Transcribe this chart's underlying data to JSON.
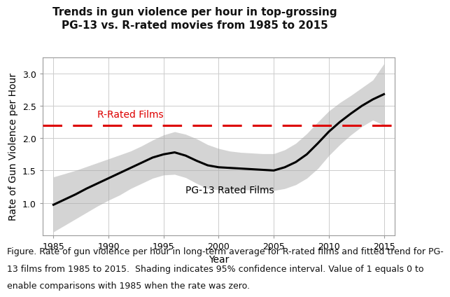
{
  "title_line1": "Trends in gun violence per hour in top-grossing",
  "title_line2": "PG-13 vs. R-rated movies from 1985 to 2015",
  "xlabel": "Year",
  "ylabel": "Rate of Gun Violence per Hour",
  "r_rated_value": 2.2,
  "r_rated_label": "R-Rated Films",
  "pg13_label": "PG-13 Rated Films",
  "xlim": [
    1984,
    2016
  ],
  "ylim": [
    0.5,
    3.25
  ],
  "yticks": [
    1.0,
    1.5,
    2.0,
    2.5,
    3.0
  ],
  "xticks": [
    1985,
    1990,
    1995,
    2000,
    2005,
    2010,
    2015
  ],
  "pg13_x": [
    1985,
    1986,
    1987,
    1988,
    1989,
    1990,
    1991,
    1992,
    1993,
    1994,
    1995,
    1996,
    1997,
    1998,
    1999,
    2000,
    2001,
    2002,
    2003,
    2004,
    2005,
    2006,
    2007,
    2008,
    2009,
    2010,
    2011,
    2012,
    2013,
    2014,
    2015
  ],
  "pg13_y": [
    0.97,
    1.05,
    1.13,
    1.22,
    1.3,
    1.38,
    1.46,
    1.54,
    1.62,
    1.7,
    1.75,
    1.78,
    1.73,
    1.65,
    1.58,
    1.55,
    1.54,
    1.53,
    1.52,
    1.51,
    1.5,
    1.55,
    1.63,
    1.75,
    1.92,
    2.1,
    2.25,
    2.38,
    2.5,
    2.6,
    2.68
  ],
  "pg13_upper": [
    1.4,
    1.45,
    1.5,
    1.56,
    1.62,
    1.68,
    1.74,
    1.8,
    1.88,
    1.97,
    2.05,
    2.1,
    2.06,
    1.99,
    1.9,
    1.84,
    1.8,
    1.78,
    1.77,
    1.76,
    1.76,
    1.82,
    1.92,
    2.07,
    2.25,
    2.42,
    2.55,
    2.66,
    2.78,
    2.9,
    3.15
  ],
  "pg13_lower": [
    0.55,
    0.65,
    0.75,
    0.85,
    0.95,
    1.04,
    1.12,
    1.22,
    1.3,
    1.38,
    1.43,
    1.44,
    1.39,
    1.3,
    1.22,
    1.2,
    1.2,
    1.2,
    1.2,
    1.2,
    1.19,
    1.22,
    1.28,
    1.38,
    1.53,
    1.73,
    1.9,
    2.05,
    2.18,
    2.28,
    2.2
  ],
  "background_color": "#ffffff",
  "plot_bg_color": "#ffffff",
  "grid_color": "#cccccc",
  "shade_color": "#aaaaaa",
  "line_color": "#000000",
  "r_line_color": "#dd0000",
  "r_label_color": "#dd0000",
  "caption_line1": "Figure. Rate of gun violence per hour in long-term average for R-rated films and fitted trend for PG-",
  "caption_line2": "13 films from 1985 to 2015.  Shading indicates 95% confidence interval. Value of 1 equals 0 to",
  "caption_line3": "enable comparisons with 1985 when the rate was zero.",
  "title_fontsize": 11,
  "label_fontsize": 10,
  "tick_fontsize": 9,
  "caption_fontsize": 9
}
